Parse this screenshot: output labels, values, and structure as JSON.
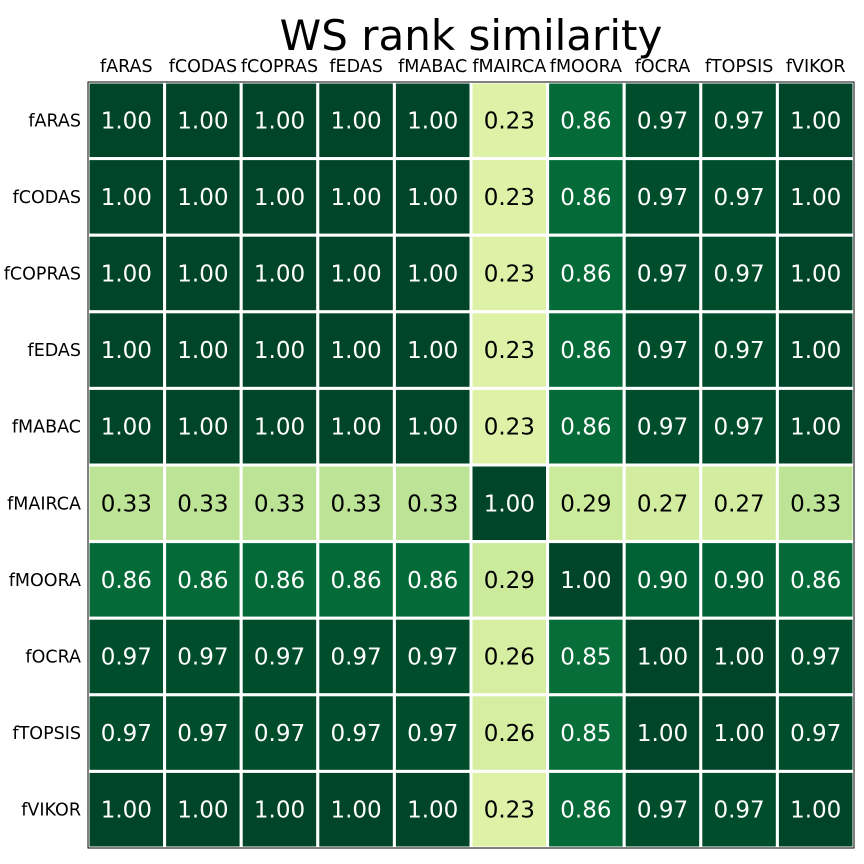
{
  "chart_data": {
    "type": "heatmap",
    "title": "WS rank similarity",
    "xlabel": "",
    "ylabel": "",
    "x_tick_position": "top",
    "colormap": "YlGn",
    "value_range": [
      0,
      1
    ],
    "grid": true,
    "grid_color": "#ffffff",
    "x_categories": [
      "fARAS",
      "fCODAS",
      "fCOPRAS",
      "fEDAS",
      "fMABAC",
      "fMAIRCA",
      "fMOORA",
      "fOCRA",
      "fTOPSIS",
      "fVIKOR"
    ],
    "y_categories": [
      "fARAS",
      "fCODAS",
      "fCOPRAS",
      "fEDAS",
      "fMABAC",
      "fMAIRCA",
      "fMOORA",
      "fOCRA",
      "fTOPSIS",
      "fVIKOR"
    ],
    "values": [
      [
        1.0,
        1.0,
        1.0,
        1.0,
        1.0,
        0.23,
        0.86,
        0.97,
        0.97,
        1.0
      ],
      [
        1.0,
        1.0,
        1.0,
        1.0,
        1.0,
        0.23,
        0.86,
        0.97,
        0.97,
        1.0
      ],
      [
        1.0,
        1.0,
        1.0,
        1.0,
        1.0,
        0.23,
        0.86,
        0.97,
        0.97,
        1.0
      ],
      [
        1.0,
        1.0,
        1.0,
        1.0,
        1.0,
        0.23,
        0.86,
        0.97,
        0.97,
        1.0
      ],
      [
        1.0,
        1.0,
        1.0,
        1.0,
        1.0,
        0.23,
        0.86,
        0.97,
        0.97,
        1.0
      ],
      [
        0.33,
        0.33,
        0.33,
        0.33,
        0.33,
        1.0,
        0.29,
        0.27,
        0.27,
        0.33
      ],
      [
        0.86,
        0.86,
        0.86,
        0.86,
        0.86,
        0.29,
        1.0,
        0.9,
        0.9,
        0.86
      ],
      [
        0.97,
        0.97,
        0.97,
        0.97,
        0.97,
        0.26,
        0.85,
        1.0,
        1.0,
        0.97
      ],
      [
        0.97,
        0.97,
        0.97,
        0.97,
        0.97,
        0.26,
        0.85,
        1.0,
        1.0,
        0.97
      ],
      [
        1.0,
        1.0,
        1.0,
        1.0,
        1.0,
        0.23,
        0.86,
        0.97,
        0.97,
        1.0
      ]
    ],
    "value_format": "0.00",
    "text_color_light": "#ffffff",
    "text_color_dark": "#000000"
  }
}
